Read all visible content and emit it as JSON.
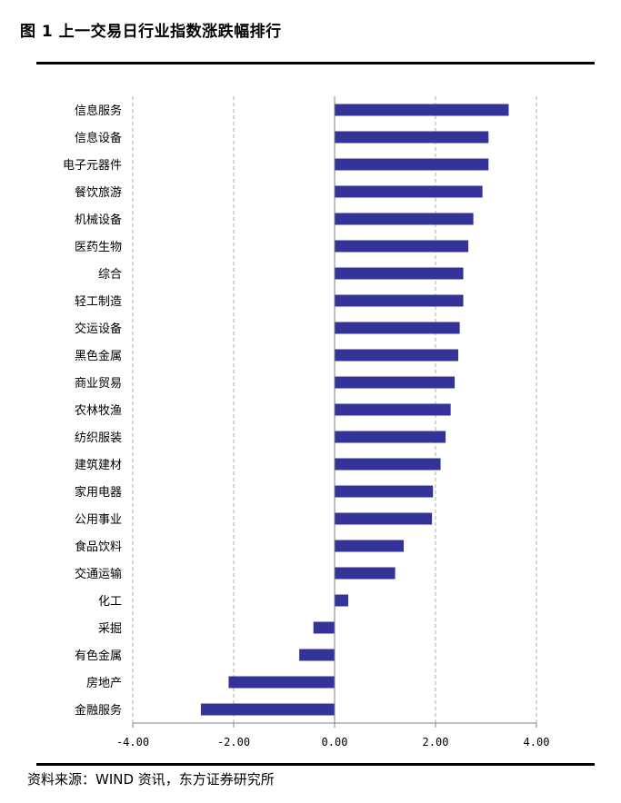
{
  "title": "图 1 上一交易日行业指数涨跌幅排行",
  "source": "资料来源：WIND 资讯，东方证券研究所",
  "chart_data": {
    "type": "bar",
    "orientation": "horizontal",
    "categories": [
      "信息服务",
      "信息设备",
      "电子元器件",
      "餐饮旅游",
      "机械设备",
      "医药生物",
      "综合",
      "轻工制造",
      "交运设备",
      "黑色金属",
      "商业贸易",
      "农林牧渔",
      "纺织服装",
      "建筑建材",
      "家用电器",
      "公用事业",
      "食品饮料",
      "交通运输",
      "化工",
      "采掘",
      "有色金属",
      "房地产",
      "金融服务"
    ],
    "values": [
      3.45,
      3.05,
      3.05,
      2.93,
      2.75,
      2.65,
      2.55,
      2.55,
      2.48,
      2.45,
      2.38,
      2.3,
      2.2,
      2.1,
      1.95,
      1.93,
      1.37,
      1.2,
      0.27,
      -0.42,
      -0.7,
      -2.1,
      -2.65
    ],
    "xlim": [
      -4,
      4
    ],
    "xticks": [
      -4,
      -2,
      0,
      2,
      4
    ],
    "xtick_labels": [
      "-4.00",
      "-2.00",
      "0.00",
      "2.00",
      "4.00"
    ],
    "grid": "vertical dashed",
    "bar_color": "#333399"
  }
}
